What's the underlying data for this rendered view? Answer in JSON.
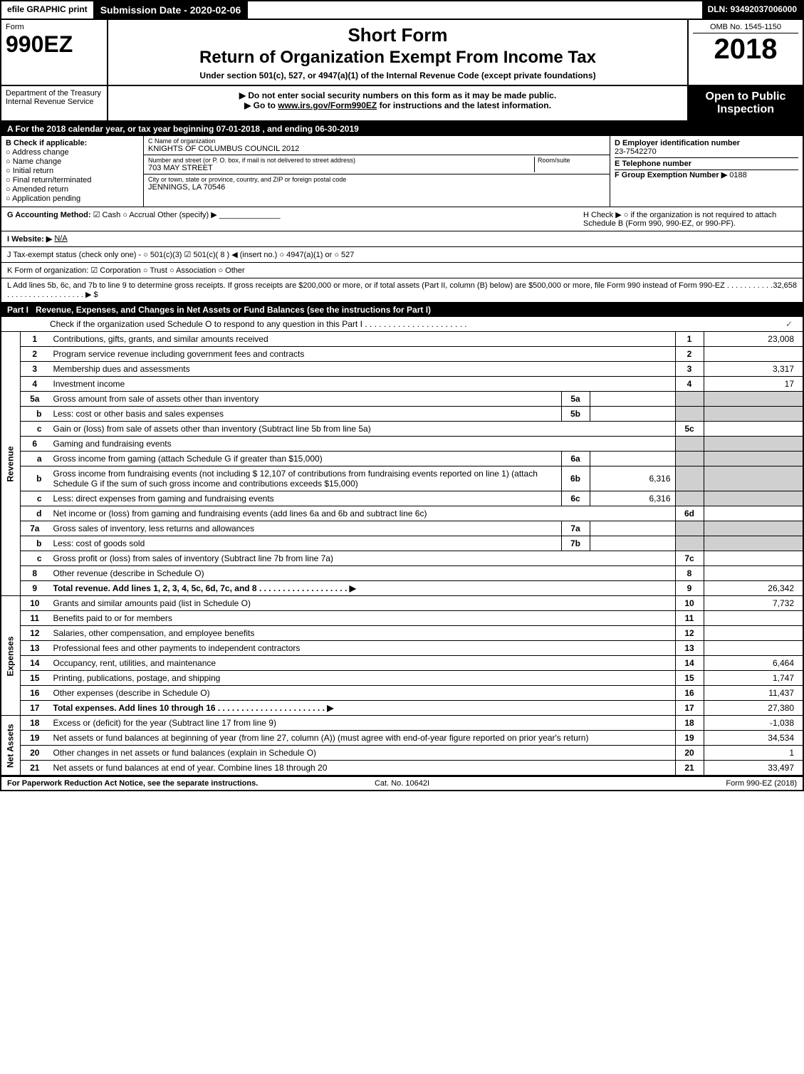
{
  "topbar": {
    "efile": "efile GRAPHIC print",
    "submission": "Submission Date - 2020-02-06",
    "dln": "DLN: 93492037006000"
  },
  "header": {
    "form_label": "Form",
    "form_num": "990EZ",
    "short": "Short Form",
    "main": "Return of Organization Exempt From Income Tax",
    "sub": "Under section 501(c), 527, or 4947(a)(1) of the Internal Revenue Code (except private foundations)",
    "omb": "OMB No. 1545-1150",
    "year": "2018"
  },
  "dept": {
    "dept": "Department of the Treasury",
    "irs": "Internal Revenue Service",
    "instr1": "Do not enter social security numbers on this form as it may be made public.",
    "instr2_prefix": "Go to ",
    "instr2_link": "www.irs.gov/Form990EZ",
    "instr2_suffix": " for instructions and the latest information.",
    "open": "Open to Public Inspection"
  },
  "period": {
    "text_a": "A  For the 2018 calendar year, or tax year beginning ",
    "begin": "07-01-2018",
    "mid": " , and ending ",
    "end": "06-30-2019"
  },
  "checkB": {
    "label": "B  Check if applicable:",
    "opts": [
      "Address change",
      "Name change",
      "Initial return",
      "Final return/terminated",
      "Amended return",
      "Application pending"
    ]
  },
  "org": {
    "c_lbl": "C Name of organization",
    "c_val": "KNIGHTS OF COLUMBUS COUNCIL 2012",
    "addr_lbl": "Number and street (or P. O. box, if mail is not delivered to street address)",
    "addr_val": "703 MAY STREET",
    "room_lbl": "Room/suite",
    "city_lbl": "City or town, state or province, country, and ZIP or foreign postal code",
    "city_val": "JENNINGS, LA  70546"
  },
  "idcol": {
    "d_lbl": "D Employer identification number",
    "d_val": "23-7542270",
    "e_lbl": "E Telephone number",
    "f_lbl": "F Group Exemption Number ▶",
    "f_val": "0188"
  },
  "misc": {
    "g_lbl": "G Accounting Method:",
    "g_opts": "☑ Cash  ○ Accrual  Other (specify) ▶",
    "h_lbl": "H  Check ▶  ○  if the organization is not required to attach Schedule B (Form 990, 990-EZ, or 990-PF).",
    "i_lbl": "I Website: ▶",
    "i_val": "N/A",
    "j_lbl": "J Tax-exempt status (check only one) -  ○ 501(c)(3)  ☑ 501(c)( 8 ) ◀ (insert no.)  ○ 4947(a)(1) or  ○ 527",
    "k_lbl": "K Form of organization:  ☑ Corporation  ○ Trust  ○ Association  ○ Other",
    "l_lbl": "L Add lines 5b, 6c, and 7b to line 9 to determine gross receipts. If gross receipts are $200,000 or more, or if total assets (Part II, column (B) below) are $500,000 or more, file Form 990 instead of Form 990-EZ  . . . . . . . . . . . . . . . . . . . . . . . . . . . . . ▶ $ ",
    "l_val": "32,658"
  },
  "part1": {
    "label": "Part I",
    "title": "Revenue, Expenses, and Changes in Net Assets or Fund Balances (see the instructions for Part I)",
    "check_line": "Check if the organization used Schedule O to respond to any question in this Part I  . . . . . . . . . . . . . . . . . . . . . ."
  },
  "sections": {
    "revenue": "Revenue",
    "expenses": "Expenses",
    "netassets": "Net Assets"
  },
  "lines": [
    {
      "n": "1",
      "desc": "Contributions, gifts, grants, and similar amounts received",
      "rn": "1",
      "rv": "23,008"
    },
    {
      "n": "2",
      "desc": "Program service revenue including government fees and contracts",
      "rn": "2",
      "rv": ""
    },
    {
      "n": "3",
      "desc": "Membership dues and assessments",
      "rn": "3",
      "rv": "3,317"
    },
    {
      "n": "4",
      "desc": "Investment income",
      "rn": "4",
      "rv": "17"
    },
    {
      "n": "5a",
      "desc": "Gross amount from sale of assets other than inventory",
      "mid_n": "5a",
      "mid_v": "",
      "shade": true
    },
    {
      "n": "b",
      "desc": "Less: cost or other basis and sales expenses",
      "mid_n": "5b",
      "mid_v": "",
      "shade": true
    },
    {
      "n": "c",
      "desc": "Gain or (loss) from sale of assets other than inventory (Subtract line 5b from line 5a)",
      "rn": "5c",
      "rv": ""
    },
    {
      "n": "6",
      "desc": "Gaming and fundraising events",
      "shade": true,
      "noboxes": true
    },
    {
      "n": "a",
      "desc": "Gross income from gaming (attach Schedule G if greater than $15,000)",
      "mid_n": "6a",
      "mid_v": "",
      "shade": true
    },
    {
      "n": "b",
      "desc": "Gross income from fundraising events (not including $  12,107  of contributions from fundraising events reported on line 1) (attach Schedule G if the sum of such gross income and contributions exceeds $15,000)",
      "mid_n": "6b",
      "mid_v": "6,316",
      "shade": true
    },
    {
      "n": "c",
      "desc": "Less: direct expenses from gaming and fundraising events",
      "mid_n": "6c",
      "mid_v": "6,316",
      "shade": true
    },
    {
      "n": "d",
      "desc": "Net income or (loss) from gaming and fundraising events (add lines 6a and 6b and subtract line 6c)",
      "rn": "6d",
      "rv": ""
    },
    {
      "n": "7a",
      "desc": "Gross sales of inventory, less returns and allowances",
      "mid_n": "7a",
      "mid_v": "",
      "shade": true
    },
    {
      "n": "b",
      "desc": "Less: cost of goods sold",
      "mid_n": "7b",
      "mid_v": "",
      "shade": true
    },
    {
      "n": "c",
      "desc": "Gross profit or (loss) from sales of inventory (Subtract line 7b from line 7a)",
      "rn": "7c",
      "rv": ""
    },
    {
      "n": "8",
      "desc": "Other revenue (describe in Schedule O)",
      "rn": "8",
      "rv": ""
    },
    {
      "n": "9",
      "desc": "Total revenue. Add lines 1, 2, 3, 4, 5c, 6d, 7c, and 8   . . . . . . . . . . . . . . . . . . . ▶",
      "rn": "9",
      "rv": "26,342",
      "bold": true
    }
  ],
  "exp_lines": [
    {
      "n": "10",
      "desc": "Grants and similar amounts paid (list in Schedule O)",
      "rn": "10",
      "rv": "7,732"
    },
    {
      "n": "11",
      "desc": "Benefits paid to or for members",
      "rn": "11",
      "rv": ""
    },
    {
      "n": "12",
      "desc": "Salaries, other compensation, and employee benefits",
      "rn": "12",
      "rv": ""
    },
    {
      "n": "13",
      "desc": "Professional fees and other payments to independent contractors",
      "rn": "13",
      "rv": ""
    },
    {
      "n": "14",
      "desc": "Occupancy, rent, utilities, and maintenance",
      "rn": "14",
      "rv": "6,464"
    },
    {
      "n": "15",
      "desc": "Printing, publications, postage, and shipping",
      "rn": "15",
      "rv": "1,747"
    },
    {
      "n": "16",
      "desc": "Other expenses (describe in Schedule O)",
      "rn": "16",
      "rv": "11,437"
    },
    {
      "n": "17",
      "desc": "Total expenses. Add lines 10 through 16   . . . . . . . . . . . . . . . . . . . . . . . ▶",
      "rn": "17",
      "rv": "27,380",
      "bold": true
    }
  ],
  "na_lines": [
    {
      "n": "18",
      "desc": "Excess or (deficit) for the year (Subtract line 17 from line 9)",
      "rn": "18",
      "rv": "-1,038"
    },
    {
      "n": "19",
      "desc": "Net assets or fund balances at beginning of year (from line 27, column (A)) (must agree with end-of-year figure reported on prior year's return)",
      "rn": "19",
      "rv": "34,534"
    },
    {
      "n": "20",
      "desc": "Other changes in net assets or fund balances (explain in Schedule O)",
      "rn": "20",
      "rv": "1"
    },
    {
      "n": "21",
      "desc": "Net assets or fund balances at end of year. Combine lines 18 through 20",
      "rn": "21",
      "rv": "33,497"
    }
  ],
  "footer": {
    "left": "For Paperwork Reduction Act Notice, see the separate instructions.",
    "center": "Cat. No. 10642I",
    "right": "Form 990-EZ (2018)"
  }
}
